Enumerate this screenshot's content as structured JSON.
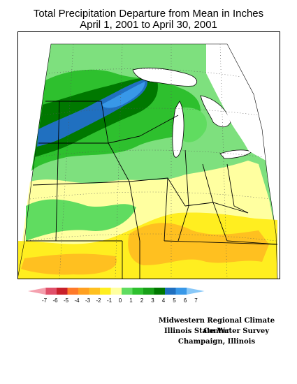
{
  "title": {
    "line1": "Total Precipitation Departure from Mean in Inches",
    "line2": "April 1, 2001 to April 30, 2001"
  },
  "legend": {
    "labels": [
      "-7",
      "-6",
      "-5",
      "-4",
      "-3",
      "-2",
      "-1",
      "0",
      "1",
      "2",
      "3",
      "4",
      "5",
      "6",
      "7"
    ],
    "colors": [
      "#f4a0ae",
      "#e0506a",
      "#c8202a",
      "#ff7a2a",
      "#ffa020",
      "#ffc020",
      "#ffee20",
      "#ffffa0",
      "#60dc60",
      "#2ec02e",
      "#18a018",
      "#007800",
      "#2070c0",
      "#3898e8",
      "#88c8f8"
    ]
  },
  "credits": {
    "line1": "Midwestern Regional Climate Center",
    "line2": "Illinois State Water Survey",
    "line3": "Champaign, Illinois"
  }
}
